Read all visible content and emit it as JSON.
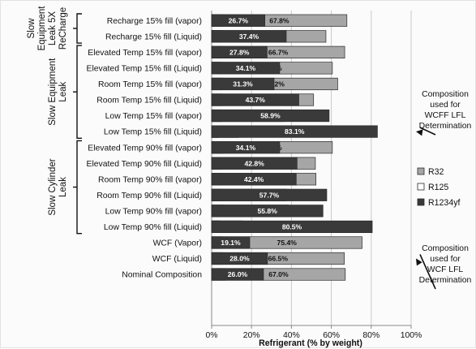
{
  "chart_data": {
    "type": "bar",
    "orientation": "horizontal",
    "stacked": true,
    "categories": [
      "Recharge 15% fill (vapor)",
      "Recharge  15% fill (Liquid)",
      "Elevated Temp 15% fill (vapor)",
      "Elevated Temp 15% fill (Liquid)",
      "Room Temp 15% fill (vapor)",
      "Room Temp 15% fill (Liquid)",
      "Low Temp 15% fill (vapor)",
      "Low Temp 15% fill (Liquid)",
      "Elevated Temp 90% fill (vapor)",
      "Elevated Temp 90% fill (Liquid)",
      "Room Temp 90% fill (vapor)",
      "Room Temp 90% fill (Liquid)",
      "Low Temp 90% fill (vapor)",
      "Low Temp 90% fill (Liquid)",
      "WCF (Vapor)",
      "WCF (Liquid)",
      "Nominal Composition"
    ],
    "series": [
      {
        "name": "R32",
        "color": "#a6a6a6",
        "text_color": "#111111",
        "values": [
          67.8,
          57.3,
          66.7,
          60.5,
          63.2,
          51.1,
          36.0,
          13.4,
          60.5,
          52.0,
          52.3,
          37.6,
          38.4,
          15.3,
          75.4,
          66.5,
          67.0
        ],
        "labels": [
          "67.8%",
          "57.3%",
          "66.7%",
          "60.5%",
          "63.2%",
          "51.1%",
          "36.0%",
          "13.4%",
          "60.5%",
          "52.0%",
          "52.3%",
          "37.6%",
          "38.4%",
          "15.3%",
          "75.4%",
          "66.5%",
          "67.0%"
        ]
      },
      {
        "name": "R125",
        "color": "#ffffff",
        "text_color": "#ffffff",
        "values": [
          5.5,
          5.3,
          5.5,
          5.4,
          5.5,
          5.2,
          5.1,
          3.5,
          5.4,
          5.2,
          5.3,
          4.8,
          5.9,
          4.2,
          5.5,
          5.5,
          7.0
        ],
        "labels": [
          "5.5%",
          "5.3%",
          "5.5%",
          "5.4%",
          "5.5%",
          "5.2%",
          "5.1%",
          "3.5%",
          "5.4%",
          "5.2%",
          "5.3%",
          "4.8%",
          "5.9%",
          "4.2%",
          "5.5%",
          "5.5%",
          "7.0%"
        ]
      },
      {
        "name": "R1234yf",
        "color": "#3a3a3a",
        "text_color": "#ffffff",
        "values": [
          26.7,
          37.4,
          27.8,
          34.1,
          31.3,
          43.7,
          58.9,
          83.1,
          34.1,
          42.8,
          42.4,
          57.7,
          55.8,
          80.5,
          19.1,
          28.0,
          26.0
        ],
        "labels": [
          "26.7%",
          "37.4%",
          "27.8%",
          "34.1%",
          "31.3%",
          "43.7%",
          "58.9%",
          "83.1%",
          "34.1%",
          "42.8%",
          "42.4%",
          "57.7%",
          "55.8%",
          "80.5%",
          "19.1%",
          "28.0%",
          "26.0%"
        ]
      }
    ],
    "xlabel": "Refrigerant (% by weight)",
    "ylabel": "",
    "xlim": [
      0,
      100
    ],
    "xticks": [
      0,
      20,
      40,
      60,
      80,
      100
    ],
    "xtick_labels": [
      "0%",
      "20%",
      "40%",
      "60%",
      "80%",
      "100%"
    ],
    "grid": true,
    "legend_position": "right",
    "groups": [
      {
        "lines": [
          "Slow",
          "Equipment",
          "Leak 5X",
          "ReCharge"
        ],
        "first": 0,
        "last": 1
      },
      {
        "lines": [
          "Slow Equipment",
          "Leak"
        ],
        "first": 2,
        "last": 7
      },
      {
        "lines": [
          "Slow Cylinder",
          "Leak"
        ],
        "first": 8,
        "last": 13
      }
    ],
    "annotations": [
      {
        "lines": [
          "Composition",
          "used for",
          "WCFF LFL",
          "Determination"
        ],
        "target_index": 7
      },
      {
        "lines": [
          "Composition",
          "used for",
          "WCF LFL",
          "Determination"
        ],
        "target_index": 15
      }
    ]
  }
}
